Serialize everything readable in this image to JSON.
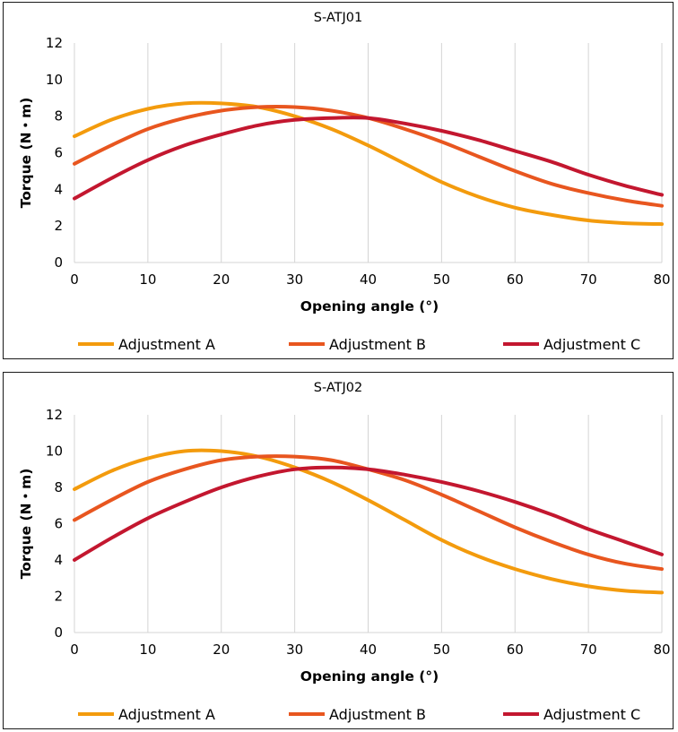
{
  "colors": {
    "series_a": "#f39b0d",
    "series_b": "#e8561f",
    "series_c": "#c3172f",
    "grid": "#d4d4d4",
    "border": "#1a1a1a"
  },
  "chart_data": [
    {
      "type": "line",
      "title": "S-ATJ01",
      "xlabel": "Opening angle (°)",
      "ylabel": "Torque (N・m)",
      "xlim": [
        0,
        80
      ],
      "ylim": [
        0,
        12
      ],
      "x_ticks": [
        0,
        10,
        20,
        30,
        40,
        50,
        60,
        70,
        80
      ],
      "x_tick_labels": [
        "0",
        "10",
        "20",
        "30",
        "40",
        "50",
        "60",
        "70",
        "80"
      ],
      "y_ticks": [
        0,
        2,
        4,
        6,
        8,
        10,
        12
      ],
      "y_tick_labels": [
        "0",
        "2",
        "4",
        "6",
        "8",
        "10",
        "12"
      ],
      "grid": "vertical",
      "legend_position": "bottom",
      "x": [
        0,
        5,
        10,
        15,
        20,
        25,
        30,
        35,
        40,
        45,
        50,
        55,
        60,
        65,
        70,
        75,
        80
      ],
      "series": [
        {
          "name": "Adjustment A",
          "values": [
            6.9,
            7.8,
            8.4,
            8.7,
            8.7,
            8.5,
            8.0,
            7.3,
            6.4,
            5.4,
            4.4,
            3.6,
            3.0,
            2.6,
            2.3,
            2.15,
            2.1
          ]
        },
        {
          "name": "Adjustment B",
          "values": [
            5.4,
            6.4,
            7.3,
            7.9,
            8.3,
            8.5,
            8.5,
            8.3,
            7.9,
            7.3,
            6.6,
            5.8,
            5.0,
            4.3,
            3.8,
            3.4,
            3.1
          ]
        },
        {
          "name": "Adjustment C",
          "values": [
            3.5,
            4.6,
            5.6,
            6.4,
            7.0,
            7.5,
            7.8,
            7.9,
            7.9,
            7.6,
            7.2,
            6.7,
            6.1,
            5.5,
            4.8,
            4.2,
            3.7
          ]
        }
      ]
    },
    {
      "type": "line",
      "title": "S-ATJ02",
      "xlabel": "Opening angle (°)",
      "ylabel": "Torque (N・m)",
      "xlim": [
        0,
        80
      ],
      "ylim": [
        0,
        12
      ],
      "x_ticks": [
        0,
        10,
        20,
        30,
        40,
        50,
        60,
        70,
        80
      ],
      "x_tick_labels": [
        "0",
        "10",
        "20",
        "30",
        "40",
        "50",
        "60",
        "70",
        "80"
      ],
      "y_ticks": [
        0,
        2,
        4,
        6,
        8,
        10,
        12
      ],
      "y_tick_labels": [
        "0",
        "2",
        "4",
        "6",
        "8",
        "10",
        "12"
      ],
      "grid": "vertical",
      "legend_position": "bottom",
      "x": [
        0,
        5,
        10,
        15,
        20,
        25,
        30,
        35,
        40,
        45,
        50,
        55,
        60,
        65,
        70,
        75,
        80
      ],
      "series": [
        {
          "name": "Adjustment A",
          "values": [
            7.9,
            8.9,
            9.6,
            10.0,
            10.0,
            9.7,
            9.1,
            8.3,
            7.3,
            6.2,
            5.1,
            4.2,
            3.5,
            2.95,
            2.55,
            2.3,
            2.2
          ]
        },
        {
          "name": "Adjustment B",
          "values": [
            6.2,
            7.3,
            8.3,
            9.0,
            9.5,
            9.7,
            9.7,
            9.5,
            9.0,
            8.4,
            7.6,
            6.7,
            5.8,
            5.0,
            4.3,
            3.8,
            3.5
          ]
        },
        {
          "name": "Adjustment C",
          "values": [
            4.0,
            5.2,
            6.3,
            7.2,
            8.0,
            8.6,
            9.0,
            9.1,
            9.0,
            8.7,
            8.3,
            7.8,
            7.2,
            6.5,
            5.7,
            5.0,
            4.3
          ]
        }
      ]
    }
  ]
}
